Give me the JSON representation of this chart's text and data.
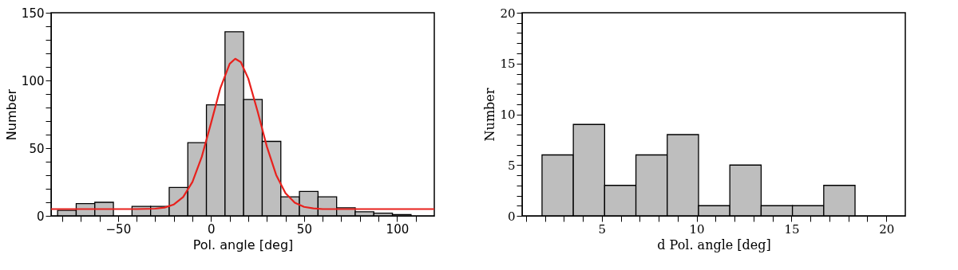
{
  "chart_data": [
    {
      "type": "histogram",
      "xlabel": "Pol. angle [deg]",
      "ylabel": "Number",
      "color": "#bebebe",
      "bins": [
        -82.5,
        -72.5,
        -62.5,
        -52.5,
        -42.5,
        -32.5,
        -22.5,
        -12.5,
        -2.5,
        7.5,
        17.5,
        27.5,
        37.5,
        47.5,
        57.5,
        67.5,
        77.5,
        87.5,
        97.5,
        107.5
      ],
      "values": [
        4,
        9,
        10,
        0,
        7,
        7,
        21,
        54,
        82,
        136,
        86,
        55,
        14,
        18,
        14,
        6,
        3,
        2,
        1
      ],
      "series": [
        {
          "type": "line",
          "color": "#e8211d",
          "x": [
            -86,
            -40,
            -30,
            -25,
            -20,
            -15,
            -10,
            -5,
            0,
            5,
            10,
            13,
            16,
            20,
            25,
            30,
            35,
            40,
            45,
            50,
            55,
            60,
            120
          ],
          "values": [
            5,
            5,
            5.3,
            6.1,
            8.4,
            13.9,
            25.1,
            43.6,
            68.6,
            94.4,
            112.3,
            116,
            113.5,
            101.4,
            77.2,
            51.1,
            30.2,
            16.8,
            9.7,
            6.6,
            5.5,
            5,
            5
          ]
        }
      ],
      "xlim": [
        -86,
        120
      ],
      "ylim": [
        0,
        150
      ],
      "xticks": [
        {
          "value": -80,
          "label": null
        },
        {
          "value": -70,
          "label": null
        },
        {
          "value": -60,
          "label": null
        },
        -50,
        {
          "value": -40,
          "label": null
        },
        {
          "value": -30,
          "label": null
        },
        {
          "value": -20,
          "label": null
        },
        {
          "value": -10,
          "label": null
        },
        0,
        {
          "value": 10,
          "label": null
        },
        {
          "value": 20,
          "label": null
        },
        {
          "value": 30,
          "label": null
        },
        {
          "value": 40,
          "label": null
        },
        50,
        {
          "value": 60,
          "label": null
        },
        {
          "value": 70,
          "label": null
        },
        {
          "value": 80,
          "label": null
        },
        {
          "value": 90,
          "label": null
        },
        100,
        {
          "value": 110,
          "label": null
        }
      ],
      "yticks": [
        0,
        {
          "value": 10,
          "label": null
        },
        {
          "value": 20,
          "label": null
        },
        {
          "value": 30,
          "label": null
        },
        {
          "value": 40,
          "label": null
        },
        50,
        {
          "value": 60,
          "label": null
        },
        {
          "value": 70,
          "label": null
        },
        {
          "value": 80,
          "label": null
        },
        {
          "value": 90,
          "label": null
        },
        100,
        {
          "value": 110,
          "label": null
        },
        {
          "value": 120,
          "label": null
        },
        {
          "value": 130,
          "label": null
        },
        {
          "value": 140,
          "label": null
        },
        150
      ]
    },
    {
      "type": "histogram",
      "xlabel": "d Pol. angle [deg]",
      "ylabel": "Number",
      "color": "#bebebe",
      "bins": [
        1.85,
        3.5,
        5.15,
        6.8,
        8.45,
        10.1,
        11.75,
        13.4,
        15.05,
        16.7,
        18.35
      ],
      "values": [
        6,
        9,
        3,
        6,
        8,
        1,
        5,
        1,
        1,
        3
      ],
      "xlim": [
        0.8,
        21
      ],
      "ylim": [
        0,
        20
      ],
      "xticks": [
        {
          "value": 1,
          "label": null
        },
        {
          "value": 2,
          "label": null
        },
        {
          "value": 3,
          "label": null
        },
        {
          "value": 4,
          "label": null
        },
        5,
        {
          "value": 6,
          "label": null
        },
        {
          "value": 7,
          "label": null
        },
        {
          "value": 8,
          "label": null
        },
        {
          "value": 9,
          "label": null
        },
        10,
        {
          "value": 11,
          "label": null
        },
        {
          "value": 12,
          "label": null
        },
        {
          "value": 13,
          "label": null
        },
        {
          "value": 14,
          "label": null
        },
        15,
        {
          "value": 16,
          "label": null
        },
        {
          "value": 17,
          "label": null
        },
        {
          "value": 18,
          "label": null
        },
        {
          "value": 19,
          "label": null
        },
        20
      ],
      "yticks": [
        0,
        {
          "value": 1,
          "label": null
        },
        {
          "value": 2,
          "label": null
        },
        {
          "value": 3,
          "label": null
        },
        {
          "value": 4,
          "label": null
        },
        5,
        {
          "value": 6,
          "label": null
        },
        {
          "value": 7,
          "label": null
        },
        {
          "value": 8,
          "label": null
        },
        {
          "value": 9,
          "label": null
        },
        10,
        {
          "value": 11,
          "label": null
        },
        {
          "value": 12,
          "label": null
        },
        {
          "value": 13,
          "label": null
        },
        {
          "value": 14,
          "label": null
        },
        15,
        {
          "value": 16,
          "label": null
        },
        {
          "value": 17,
          "label": null
        },
        {
          "value": 18,
          "label": null
        },
        {
          "value": 19,
          "label": null
        },
        20
      ]
    }
  ]
}
